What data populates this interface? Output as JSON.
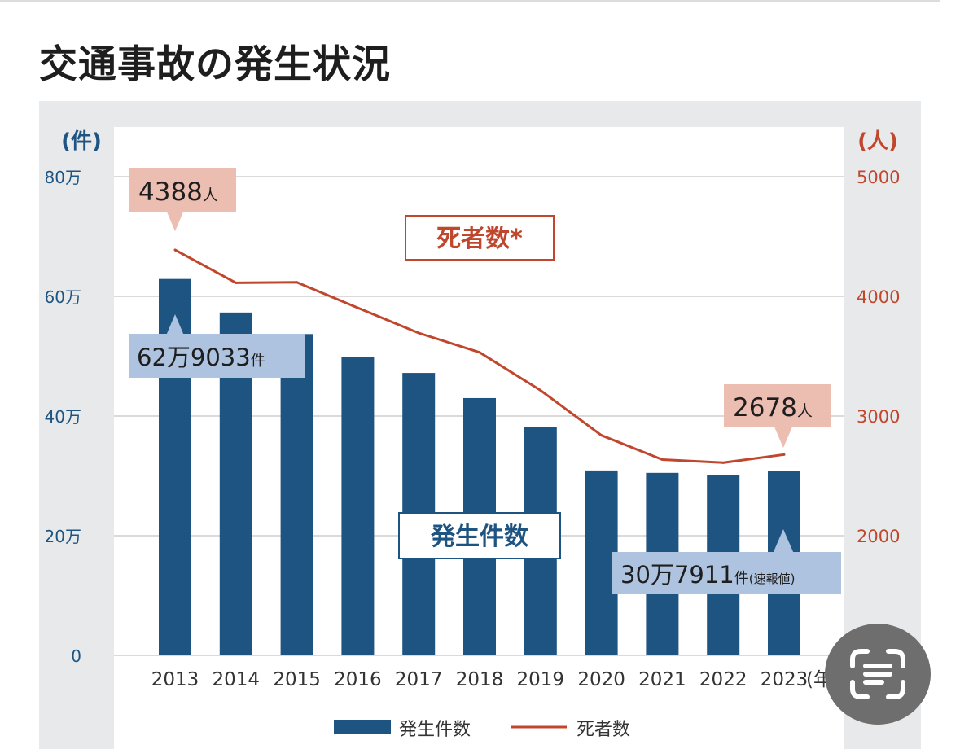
{
  "page": {
    "title": "交通事故の発生状況"
  },
  "chart_data": {
    "type": "bar+line",
    "categories": [
      "2013",
      "2014",
      "2015",
      "2016",
      "2017",
      "2018",
      "2019",
      "2020",
      "2021",
      "2022",
      "2023"
    ],
    "x_unit_label": "(年)",
    "series": [
      {
        "name": "発生件数",
        "type": "bar",
        "axis": "left",
        "color": "#1e5482",
        "values": [
          629033,
          573000,
          537000,
          499000,
          472000,
          430000,
          381000,
          309000,
          305000,
          301000,
          307911
        ]
      },
      {
        "name": "死者数",
        "type": "line",
        "axis": "right",
        "color": "#c0472e",
        "values": [
          4388,
          4113,
          4117,
          3904,
          3694,
          3532,
          3215,
          2839,
          2636,
          2610,
          2678
        ]
      }
    ],
    "y_left": {
      "unit_label": "(件)",
      "ylim": [
        0,
        800000
      ],
      "ticks": [
        0,
        200000,
        400000,
        600000,
        800000
      ],
      "tick_labels": [
        "0",
        "20万",
        "40万",
        "60万",
        "80万"
      ]
    },
    "y_right": {
      "unit_label": "(人)",
      "ylim": [
        1000,
        5000
      ],
      "ticks": [
        2000,
        3000,
        4000,
        5000
      ],
      "tick_labels": [
        "2000",
        "3000",
        "4000",
        "5000"
      ]
    },
    "series_labels": {
      "line": "死者数*",
      "bar": "発生件数"
    },
    "annotations": {
      "deaths_2013": {
        "value": "4388",
        "unit": "人"
      },
      "deaths_2023": {
        "value": "2678",
        "unit": "人"
      },
      "cases_2013": {
        "value": "62万9033",
        "unit": "件"
      },
      "cases_2023": {
        "value": "30万7911",
        "unit": "件",
        "note": "(速報値)"
      }
    },
    "legend": {
      "position": "bottom",
      "items": [
        "発生件数",
        "死者数"
      ]
    }
  },
  "overlay": {
    "icon": "text-scan-icon"
  }
}
